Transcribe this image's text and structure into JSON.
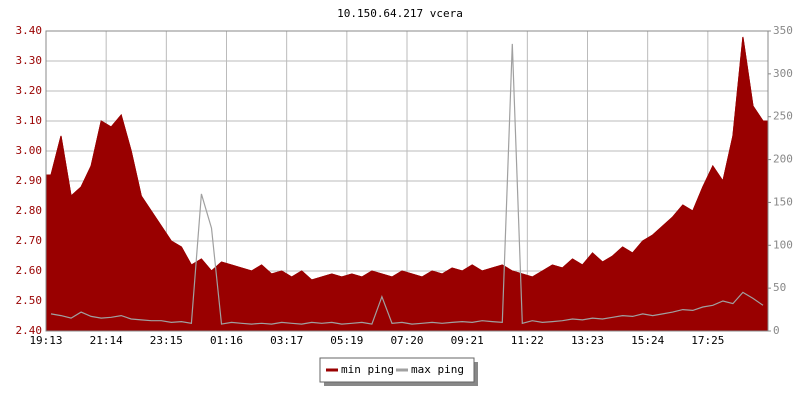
{
  "chart_data": {
    "type": "area",
    "title": "10.150.64.217 vcera",
    "categories": [
      "19:13",
      null,
      null,
      null,
      null,
      null,
      "21:14",
      null,
      null,
      null,
      null,
      null,
      "23:15",
      null,
      null,
      null,
      null,
      null,
      "01:16",
      null,
      null,
      null,
      null,
      null,
      "03:17",
      null,
      null,
      null,
      null,
      null,
      "05:19",
      null,
      null,
      null,
      null,
      null,
      "07:20",
      null,
      null,
      null,
      null,
      null,
      "09:21",
      null,
      null,
      null,
      null,
      null,
      "11:22",
      null,
      null,
      null,
      null,
      null,
      "13:23",
      null,
      null,
      null,
      null,
      null,
      "15:24",
      null,
      null,
      null,
      null,
      null,
      "17:25",
      null,
      null,
      null,
      null,
      null
    ],
    "series": [
      {
        "name": "min ping",
        "color": "#990000",
        "values": [
          2.92,
          3.05,
          2.85,
          2.88,
          2.95,
          3.1,
          3.08,
          3.12,
          3.0,
          2.85,
          2.8,
          2.75,
          2.7,
          2.68,
          2.62,
          2.64,
          2.6,
          2.63,
          2.62,
          2.61,
          2.6,
          2.62,
          2.59,
          2.6,
          2.58,
          2.6,
          2.57,
          2.58,
          2.59,
          2.58,
          2.59,
          2.58,
          2.6,
          2.59,
          2.58,
          2.6,
          2.59,
          2.58,
          2.6,
          2.59,
          2.61,
          2.6,
          2.62,
          2.6,
          2.61,
          2.62,
          2.6,
          2.59,
          2.58,
          2.6,
          2.62,
          2.61,
          2.64,
          2.62,
          2.66,
          2.63,
          2.65,
          2.68,
          2.66,
          2.7,
          2.72,
          2.75,
          2.78,
          2.82,
          2.8,
          2.88,
          2.95,
          2.9,
          3.05,
          3.38,
          3.15,
          3.1
        ]
      },
      {
        "name": "max ping",
        "color": "#a0a0a0",
        "axis": "y2",
        "values": [
          20,
          18,
          15,
          22,
          17,
          15,
          16,
          18,
          14,
          13,
          12,
          12,
          10,
          11,
          9,
          160,
          120,
          8,
          10,
          9,
          8,
          9,
          8,
          10,
          9,
          8,
          10,
          9,
          10,
          8,
          9,
          10,
          8,
          40,
          9,
          10,
          8,
          9,
          10,
          9,
          10,
          11,
          10,
          12,
          11,
          10,
          335,
          9,
          12,
          10,
          11,
          12,
          14,
          13,
          15,
          14,
          16,
          18,
          17,
          20,
          18,
          20,
          22,
          25,
          24,
          28,
          30,
          35,
          32,
          45,
          38,
          30
        ]
      }
    ],
    "ylim": [
      2.4,
      3.4
    ],
    "yticks": [
      {
        "value": 2.4,
        "label": "2.40"
      },
      {
        "value": 2.5,
        "label": "2.50"
      },
      {
        "value": 2.6,
        "label": "2.60"
      },
      {
        "value": 2.7,
        "label": "2.70"
      },
      {
        "value": 2.8,
        "label": "2.80"
      },
      {
        "value": 2.9,
        "label": "2.90"
      },
      {
        "value": 3.0,
        "label": "3.00"
      },
      {
        "value": 3.1,
        "label": "3.10"
      },
      {
        "value": 3.2,
        "label": "3.20"
      },
      {
        "value": 3.3,
        "label": "3.30"
      },
      {
        "value": 3.4,
        "label": "3.40"
      }
    ],
    "y2lim": [
      0,
      350
    ],
    "y2ticks": [
      0,
      50,
      100,
      150,
      200,
      250,
      300,
      350
    ],
    "grid": true
  }
}
